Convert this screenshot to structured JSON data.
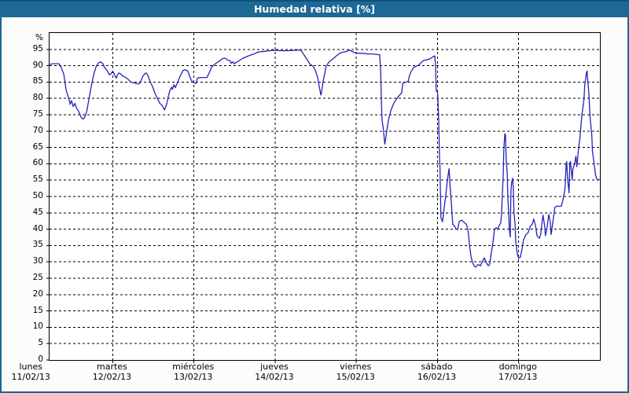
{
  "window": {
    "title": "Humedad relativa [%]"
  },
  "colors": {
    "frame": "#1b6594",
    "titlebar": "#1e6896",
    "titlebar_top_edge": "#124e78",
    "plot_background": "#ffffff",
    "grid": "#000000",
    "line": "#2222bb",
    "title_text": "#ffffff"
  },
  "chart_data": {
    "type": "line",
    "title": "Humedad relativa [%]",
    "ylabel": "%",
    "ylim": [
      0,
      100
    ],
    "y_tick_step": 5,
    "y_tick_labels": [
      "0",
      "5",
      "10",
      "15",
      "20",
      "25",
      "30",
      "35",
      "40",
      "45",
      "50",
      "55",
      "60",
      "65",
      "70",
      "75",
      "80",
      "85",
      "90",
      "95"
    ],
    "y_unit_label": "%",
    "grid": "dashed",
    "legend": "none",
    "hours_per_day": 24,
    "x_range_hours": [
      5.3,
      168
    ],
    "x_days": [
      {
        "label": "lunes",
        "date": "11/02/13"
      },
      {
        "label": "martes",
        "date": "12/02/13"
      },
      {
        "label": "miércoles",
        "date": "13/02/13"
      },
      {
        "label": "jueves",
        "date": "14/02/13"
      },
      {
        "label": "viernes",
        "date": "15/02/13"
      },
      {
        "label": "sábado",
        "date": "16/02/13"
      },
      {
        "label": "domingo",
        "date": "17/02/13"
      }
    ],
    "series": [
      {
        "name": "Humedad relativa [%]",
        "points": [
          [
            5.3,
            90.4
          ],
          [
            6.3,
            90.6
          ],
          [
            8.1,
            90.6
          ],
          [
            8.6,
            89.8
          ],
          [
            9.5,
            87.4
          ],
          [
            10.2,
            82.6
          ],
          [
            11.2,
            79.2
          ],
          [
            11.4,
            78.2
          ],
          [
            11.8,
            79.3
          ],
          [
            12.3,
            77.5
          ],
          [
            12.8,
            78.5
          ],
          [
            13.2,
            77.2
          ],
          [
            13.9,
            76.0
          ],
          [
            14.6,
            74.3
          ],
          [
            15.1,
            73.7
          ],
          [
            15.6,
            74.0
          ],
          [
            16.3,
            76.0
          ],
          [
            17.0,
            80.0
          ],
          [
            17.7,
            84.0
          ],
          [
            18.4,
            87.5
          ],
          [
            19.1,
            89.8
          ],
          [
            19.7,
            90.8
          ],
          [
            20.4,
            91.2
          ],
          [
            21.1,
            90.6
          ],
          [
            21.6,
            89.4
          ],
          [
            22.3,
            88.6
          ],
          [
            23.0,
            87.2
          ],
          [
            23.5,
            87.6
          ],
          [
            23.9,
            88.2
          ],
          [
            24.2,
            88.0
          ],
          [
            24.6,
            87.0
          ],
          [
            25.1,
            86.2
          ],
          [
            25.3,
            87.0
          ],
          [
            25.8,
            87.8
          ],
          [
            26.3,
            87.5
          ],
          [
            27.0,
            86.8
          ],
          [
            27.6,
            86.6
          ],
          [
            28.6,
            85.8
          ],
          [
            29.3,
            85.0
          ],
          [
            30.4,
            84.7
          ],
          [
            31.6,
            84.4
          ],
          [
            32.1,
            84.8
          ],
          [
            32.8,
            86.6
          ],
          [
            33.5,
            87.6
          ],
          [
            33.9,
            87.8
          ],
          [
            34.4,
            87.0
          ],
          [
            35.1,
            85.0
          ],
          [
            35.8,
            83.5
          ],
          [
            36.5,
            81.5
          ],
          [
            37.2,
            80.0
          ],
          [
            37.9,
            78.5
          ],
          [
            38.6,
            77.8
          ],
          [
            39.3,
            76.5
          ],
          [
            40.0,
            78.5
          ],
          [
            40.4,
            80.6
          ],
          [
            40.9,
            82.5
          ],
          [
            41.4,
            83.4
          ],
          [
            41.6,
            82.8
          ],
          [
            42.1,
            84.2
          ],
          [
            42.5,
            83.3
          ],
          [
            43.2,
            85.0
          ],
          [
            43.9,
            86.8
          ],
          [
            44.8,
            88.6
          ],
          [
            45.5,
            88.8
          ],
          [
            46.2,
            88.3
          ],
          [
            46.7,
            86.8
          ],
          [
            47.2,
            85.6
          ],
          [
            47.6,
            85.0
          ],
          [
            48.1,
            84.7
          ],
          [
            48.6,
            84.6
          ],
          [
            49.0,
            86.2
          ],
          [
            49.7,
            86.4
          ],
          [
            50.9,
            86.4
          ],
          [
            51.8,
            86.4
          ],
          [
            52.5,
            87.8
          ],
          [
            53.2,
            89.6
          ],
          [
            54.1,
            90.4
          ],
          [
            54.8,
            91.0
          ],
          [
            55.5,
            91.4
          ],
          [
            56.5,
            92.2
          ],
          [
            57.2,
            92.3
          ],
          [
            57.9,
            91.8
          ],
          [
            58.8,
            91.4
          ],
          [
            59.0,
            90.7
          ],
          [
            59.5,
            91.2
          ],
          [
            59.9,
            90.6
          ],
          [
            61.1,
            91.4
          ],
          [
            62.5,
            92.3
          ],
          [
            64.1,
            93.0
          ],
          [
            65.7,
            93.6
          ],
          [
            67.1,
            94.2
          ],
          [
            68.8,
            94.4
          ],
          [
            70.4,
            94.6
          ],
          [
            71.8,
            94.7
          ],
          [
            73.4,
            94.6
          ],
          [
            75.7,
            94.6
          ],
          [
            78.1,
            94.7
          ],
          [
            79.5,
            94.8
          ],
          [
            79.9,
            94.3
          ],
          [
            81.5,
            91.8
          ],
          [
            82.2,
            90.6
          ],
          [
            83.2,
            89.8
          ],
          [
            83.9,
            88.6
          ],
          [
            84.6,
            86.2
          ],
          [
            85.0,
            83.8
          ],
          [
            85.5,
            81.0
          ],
          [
            85.7,
            81.8
          ],
          [
            86.2,
            85.4
          ],
          [
            86.7,
            87.8
          ],
          [
            86.9,
            89.4
          ],
          [
            87.8,
            91.0
          ],
          [
            88.5,
            91.6
          ],
          [
            89.2,
            92.2
          ],
          [
            90.1,
            93.0
          ],
          [
            90.8,
            93.6
          ],
          [
            91.5,
            94.0
          ],
          [
            92.5,
            94.2
          ],
          [
            93.2,
            94.4
          ],
          [
            93.9,
            94.8
          ],
          [
            95.5,
            94.0
          ],
          [
            96.7,
            93.8
          ],
          [
            97.8,
            93.8
          ],
          [
            99.4,
            93.6
          ],
          [
            100.8,
            93.6
          ],
          [
            102.4,
            93.4
          ],
          [
            102.9,
            93.4
          ],
          [
            103.2,
            88.0
          ],
          [
            103.4,
            79.0
          ],
          [
            103.6,
            73.5
          ],
          [
            104.0,
            70.5
          ],
          [
            104.4,
            66.0
          ],
          [
            104.8,
            68.7
          ],
          [
            105.5,
            73.4
          ],
          [
            106.2,
            76.3
          ],
          [
            107.1,
            78.6
          ],
          [
            108.0,
            80.0
          ],
          [
            109.0,
            81.3
          ],
          [
            109.4,
            81.6
          ],
          [
            109.7,
            84.6
          ],
          [
            110.3,
            84.9
          ],
          [
            111.3,
            85.2
          ],
          [
            111.7,
            87.0
          ],
          [
            112.2,
            88.2
          ],
          [
            112.9,
            89.4
          ],
          [
            113.6,
            89.8
          ],
          [
            114.5,
            90.2
          ],
          [
            115.2,
            91.0
          ],
          [
            115.9,
            91.6
          ],
          [
            116.8,
            91.8
          ],
          [
            117.5,
            92.0
          ],
          [
            118.2,
            92.4
          ],
          [
            118.7,
            92.8
          ],
          [
            119.2,
            93.0
          ],
          [
            119.4,
            90.2
          ],
          [
            119.6,
            82.2
          ],
          [
            120.0,
            82.0
          ],
          [
            120.3,
            75.0
          ],
          [
            120.6,
            61.5
          ],
          [
            120.7,
            59.5
          ],
          [
            121.0,
            43.5
          ],
          [
            121.5,
            42.3
          ],
          [
            122.0,
            47.0
          ],
          [
            122.4,
            50.0
          ],
          [
            122.9,
            55.0
          ],
          [
            123.4,
            58.5
          ],
          [
            123.8,
            52.0
          ],
          [
            124.1,
            47.9
          ],
          [
            124.5,
            41.5
          ],
          [
            125.0,
            41.0
          ],
          [
            125.4,
            40.2
          ],
          [
            125.9,
            39.8
          ],
          [
            126.4,
            42.3
          ],
          [
            127.1,
            42.8
          ],
          [
            128.0,
            42.0
          ],
          [
            128.5,
            41.5
          ],
          [
            128.9,
            40.3
          ],
          [
            129.2,
            37.9
          ],
          [
            129.4,
            35.5
          ],
          [
            129.9,
            31.6
          ],
          [
            130.3,
            30.0
          ],
          [
            130.8,
            28.8
          ],
          [
            131.3,
            28.4
          ],
          [
            132.0,
            29.2
          ],
          [
            132.7,
            28.8
          ],
          [
            133.4,
            30.4
          ],
          [
            133.8,
            31.2
          ],
          [
            134.5,
            29.6
          ],
          [
            135.0,
            28.8
          ],
          [
            135.4,
            29.2
          ],
          [
            135.9,
            32.8
          ],
          [
            136.4,
            36.0
          ],
          [
            136.8,
            39.7
          ],
          [
            137.3,
            40.5
          ],
          [
            137.8,
            39.9
          ],
          [
            138.2,
            41.1
          ],
          [
            138.7,
            41.9
          ],
          [
            138.9,
            44.3
          ],
          [
            139.2,
            51.5
          ],
          [
            139.4,
            56.3
          ],
          [
            139.6,
            64.3
          ],
          [
            139.9,
            69.2
          ],
          [
            140.1,
            68.7
          ],
          [
            140.3,
            61.1
          ],
          [
            140.6,
            57.1
          ],
          [
            140.8,
            49.1
          ],
          [
            141.0,
            45.9
          ],
          [
            141.2,
            40.3
          ],
          [
            141.5,
            37.6
          ],
          [
            141.7,
            51.5
          ],
          [
            141.9,
            54.3
          ],
          [
            142.2,
            55.6
          ],
          [
            142.4,
            52.3
          ],
          [
            142.6,
            45.1
          ],
          [
            142.9,
            41.9
          ],
          [
            143.1,
            36.3
          ],
          [
            143.3,
            34.7
          ],
          [
            143.6,
            32.3
          ],
          [
            144.0,
            31.1
          ],
          [
            144.5,
            31.5
          ],
          [
            145.0,
            34.0
          ],
          [
            145.4,
            36.7
          ],
          [
            146.1,
            38.3
          ],
          [
            146.8,
            39.0
          ],
          [
            147.5,
            41.0
          ],
          [
            148.0,
            41.5
          ],
          [
            148.4,
            43.1
          ],
          [
            148.9,
            41.5
          ],
          [
            149.4,
            38.0
          ],
          [
            150.1,
            37.2
          ],
          [
            150.5,
            38.4
          ],
          [
            151.0,
            43.0
          ],
          [
            151.2,
            44.3
          ],
          [
            151.7,
            40.7
          ],
          [
            151.9,
            38.0
          ],
          [
            152.4,
            40.7
          ],
          [
            152.9,
            44.5
          ],
          [
            153.3,
            42.3
          ],
          [
            153.6,
            38.4
          ],
          [
            154.3,
            43.9
          ],
          [
            154.7,
            46.7
          ],
          [
            155.4,
            47.1
          ],
          [
            156.1,
            47.0
          ],
          [
            156.6,
            47.1
          ],
          [
            157.0,
            48.7
          ],
          [
            157.5,
            51.1
          ],
          [
            157.7,
            52.7
          ],
          [
            158.0,
            59.9
          ],
          [
            158.2,
            60.7
          ],
          [
            158.4,
            55.9
          ],
          [
            158.9,
            51.1
          ],
          [
            159.1,
            60.3
          ],
          [
            159.3,
            60.7
          ],
          [
            159.8,
            55.1
          ],
          [
            160.0,
            58.3
          ],
          [
            160.5,
            59.9
          ],
          [
            160.9,
            62.3
          ],
          [
            161.2,
            59.1
          ],
          [
            161.6,
            63.9
          ],
          [
            162.1,
            67.9
          ],
          [
            162.6,
            74.2
          ],
          [
            162.8,
            75.8
          ],
          [
            163.3,
            79.8
          ],
          [
            163.5,
            83.8
          ],
          [
            164.0,
            87.8
          ],
          [
            164.2,
            88.4
          ],
          [
            164.4,
            85.4
          ],
          [
            164.7,
            82.2
          ],
          [
            165.1,
            74.2
          ],
          [
            165.6,
            68.7
          ],
          [
            165.8,
            63.9
          ],
          [
            166.3,
            59.9
          ],
          [
            166.7,
            56.7
          ],
          [
            167.0,
            55.5
          ],
          [
            167.4,
            55.0
          ],
          [
            167.9,
            55.3
          ]
        ]
      }
    ]
  }
}
